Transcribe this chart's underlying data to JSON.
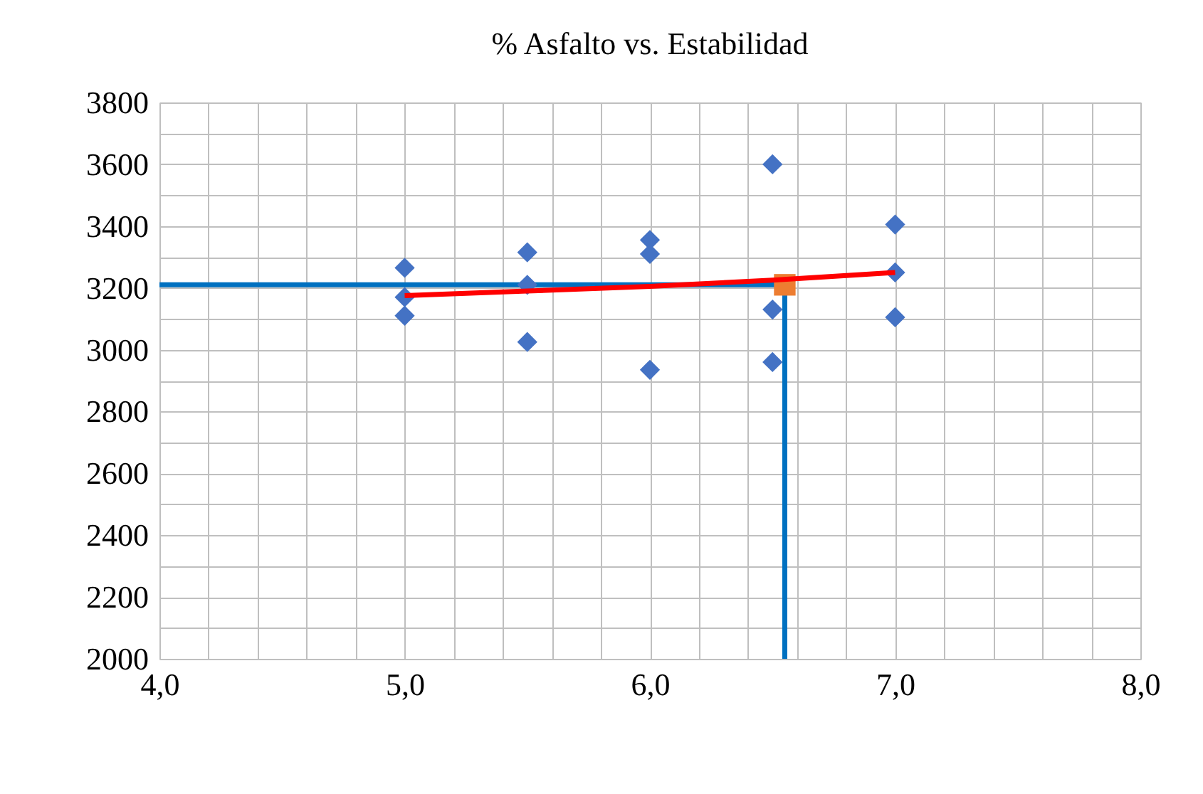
{
  "chart_data": {
    "type": "scatter",
    "title": "% Asfalto vs. Estabilidad",
    "xlim": [
      4.0,
      8.0
    ],
    "xticks": [
      {
        "value": 4.0,
        "label": "4,0"
      },
      {
        "value": 4.2,
        "label": null
      },
      {
        "value": 4.4,
        "label": null
      },
      {
        "value": 4.6,
        "label": null
      },
      {
        "value": 4.8,
        "label": null
      },
      {
        "value": 5.0,
        "label": "5,0"
      },
      {
        "value": 5.2,
        "label": null
      },
      {
        "value": 5.4,
        "label": null
      },
      {
        "value": 5.6,
        "label": null
      },
      {
        "value": 5.8,
        "label": null
      },
      {
        "value": 6.0,
        "label": "6,0"
      },
      {
        "value": 6.2,
        "label": null
      },
      {
        "value": 6.4,
        "label": null
      },
      {
        "value": 6.6,
        "label": null
      },
      {
        "value": 6.8,
        "label": null
      },
      {
        "value": 7.0,
        "label": "7,0"
      },
      {
        "value": 7.2,
        "label": null
      },
      {
        "value": 7.4,
        "label": null
      },
      {
        "value": 7.6,
        "label": null
      },
      {
        "value": 7.8,
        "label": null
      },
      {
        "value": 8.0,
        "label": "8,0"
      }
    ],
    "ylim": [
      2000,
      3800
    ],
    "yticks": [
      2000,
      {
        "value": 2100,
        "label": null
      },
      2200,
      {
        "value": 2300,
        "label": null
      },
      2400,
      {
        "value": 2500,
        "label": null
      },
      2600,
      {
        "value": 2700,
        "label": null
      },
      2800,
      {
        "value": 2900,
        "label": null
      },
      3000,
      {
        "value": 3100,
        "label": null
      },
      3200,
      {
        "value": 3300,
        "label": null
      },
      3400,
      {
        "value": 3500,
        "label": null
      },
      3600,
      {
        "value": 3700,
        "label": null
      },
      3800
    ],
    "grid": true,
    "series": [
      {
        "type": "line",
        "color": "#0070c0",
        "marker": "none",
        "line_style": "solid",
        "x": [
          4.0,
          6.55
        ],
        "values": [
          3210,
          3210
        ]
      },
      {
        "type": "line",
        "color": "#0070c0",
        "marker": "none",
        "line_style": "solid",
        "x": [
          6.55,
          6.55
        ],
        "values": [
          3210,
          2000
        ]
      },
      {
        "color": "#4472c4",
        "marker": "diamond",
        "x": [
          5.0,
          5.0,
          5.0,
          5.5,
          5.5,
          5.5,
          6.0,
          6.0,
          6.0,
          6.5,
          6.5,
          6.5,
          7.0,
          7.0,
          7.0
        ],
        "values": [
          3265,
          3170,
          3110,
          3315,
          3210,
          3025,
          3355,
          3310,
          2935,
          3600,
          3130,
          2960,
          3405,
          3250,
          3105
        ]
      },
      {
        "color": "#ed7d31",
        "marker": "square",
        "x": [
          6.55
        ],
        "values": [
          3210
        ]
      },
      {
        "type": "line",
        "color": "#ff0000",
        "marker": "none",
        "line_style": "solid",
        "x": [
          5.0,
          5.5,
          6.0,
          6.5,
          7.0
        ],
        "values": [
          3175,
          3190,
          3205,
          3225,
          3250
        ]
      }
    ]
  }
}
